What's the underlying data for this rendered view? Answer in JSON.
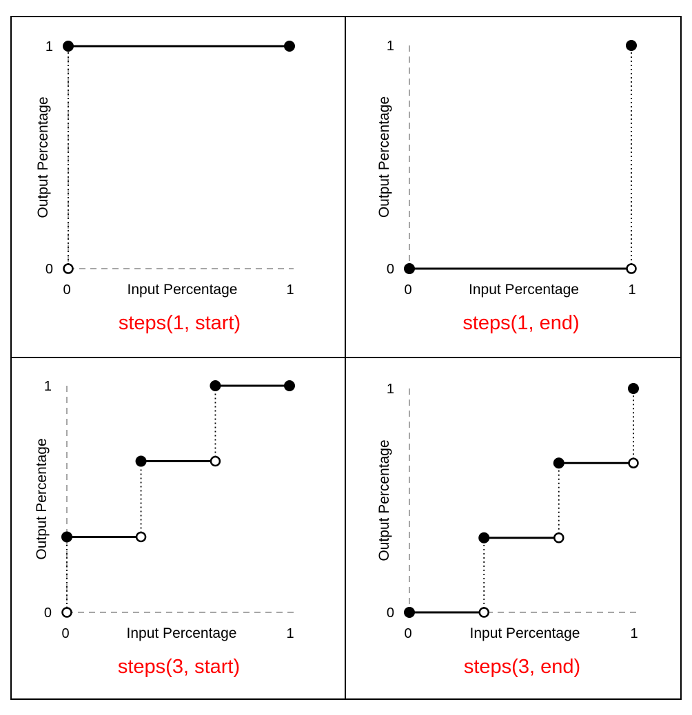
{
  "colors": {
    "title": "#ff0000",
    "line": "#000000",
    "frame": "#000000",
    "axis_dash": "#888888",
    "background": "#ffffff"
  },
  "chart_data": [
    {
      "type": "line",
      "title": "steps(1, start)",
      "xlabel": "Input Percentage",
      "ylabel": "Output Percentage",
      "xlim": [
        0,
        1
      ],
      "ylim": [
        0,
        1
      ],
      "x_ticks": [
        "0",
        "1"
      ],
      "y_ticks": [
        "0",
        "1"
      ],
      "segments": [
        {
          "x": [
            0,
            1
          ],
          "y": [
            1,
            1
          ]
        }
      ],
      "jumps": [
        {
          "x": 0,
          "from": 0,
          "to": 1
        }
      ],
      "filled_points": [
        {
          "x": 0,
          "y": 1
        },
        {
          "x": 1,
          "y": 1
        }
      ],
      "open_points": [
        {
          "x": 0,
          "y": 0
        }
      ]
    },
    {
      "type": "line",
      "title": "steps(1, end)",
      "xlabel": "Input Percentage",
      "ylabel": "Output Percentage",
      "xlim": [
        0,
        1
      ],
      "ylim": [
        0,
        1
      ],
      "x_ticks": [
        "0",
        "1"
      ],
      "y_ticks": [
        "0",
        "1"
      ],
      "segments": [
        {
          "x": [
            0,
            1
          ],
          "y": [
            0,
            0
          ]
        }
      ],
      "jumps": [
        {
          "x": 1,
          "from": 0,
          "to": 1
        }
      ],
      "filled_points": [
        {
          "x": 0,
          "y": 0
        },
        {
          "x": 1,
          "y": 1
        }
      ],
      "open_points": [
        {
          "x": 1,
          "y": 0
        }
      ]
    },
    {
      "type": "line",
      "title": "steps(3, start)",
      "xlabel": "Input Percentage",
      "ylabel": "Output Percentage",
      "xlim": [
        0,
        1
      ],
      "ylim": [
        0,
        1
      ],
      "x_ticks": [
        "0",
        "1"
      ],
      "y_ticks": [
        "0",
        "1"
      ],
      "segments": [
        {
          "x": [
            0,
            0.333
          ],
          "y": [
            0.333,
            0.333
          ]
        },
        {
          "x": [
            0.333,
            0.667
          ],
          "y": [
            0.667,
            0.667
          ]
        },
        {
          "x": [
            0.667,
            1
          ],
          "y": [
            1,
            1
          ]
        }
      ],
      "jumps": [
        {
          "x": 0,
          "from": 0,
          "to": 0.333
        },
        {
          "x": 0.333,
          "from": 0.333,
          "to": 0.667
        },
        {
          "x": 0.667,
          "from": 0.667,
          "to": 1
        }
      ],
      "filled_points": [
        {
          "x": 0,
          "y": 0.333
        },
        {
          "x": 0.333,
          "y": 0.667
        },
        {
          "x": 0.667,
          "y": 1
        },
        {
          "x": 1,
          "y": 1
        }
      ],
      "open_points": [
        {
          "x": 0,
          "y": 0
        },
        {
          "x": 0.333,
          "y": 0.333
        },
        {
          "x": 0.667,
          "y": 0.667
        }
      ]
    },
    {
      "type": "line",
      "title": "steps(3, end)",
      "xlabel": "Input Percentage",
      "ylabel": "Output Percentage",
      "xlim": [
        0,
        1
      ],
      "ylim": [
        0,
        1
      ],
      "x_ticks": [
        "0",
        "1"
      ],
      "y_ticks": [
        "0",
        "1"
      ],
      "segments": [
        {
          "x": [
            0,
            0.333
          ],
          "y": [
            0,
            0
          ]
        },
        {
          "x": [
            0.333,
            0.667
          ],
          "y": [
            0.333,
            0.333
          ]
        },
        {
          "x": [
            0.667,
            1
          ],
          "y": [
            0.667,
            0.667
          ]
        }
      ],
      "jumps": [
        {
          "x": 0.333,
          "from": 0,
          "to": 0.333
        },
        {
          "x": 0.667,
          "from": 0.333,
          "to": 0.667
        },
        {
          "x": 1,
          "from": 0.667,
          "to": 1
        }
      ],
      "filled_points": [
        {
          "x": 0,
          "y": 0
        },
        {
          "x": 0.333,
          "y": 0.333
        },
        {
          "x": 0.667,
          "y": 0.667
        },
        {
          "x": 1,
          "y": 1
        }
      ],
      "open_points": [
        {
          "x": 0.333,
          "y": 0
        },
        {
          "x": 0.667,
          "y": 0.333
        },
        {
          "x": 1,
          "y": 0.667
        }
      ]
    }
  ]
}
